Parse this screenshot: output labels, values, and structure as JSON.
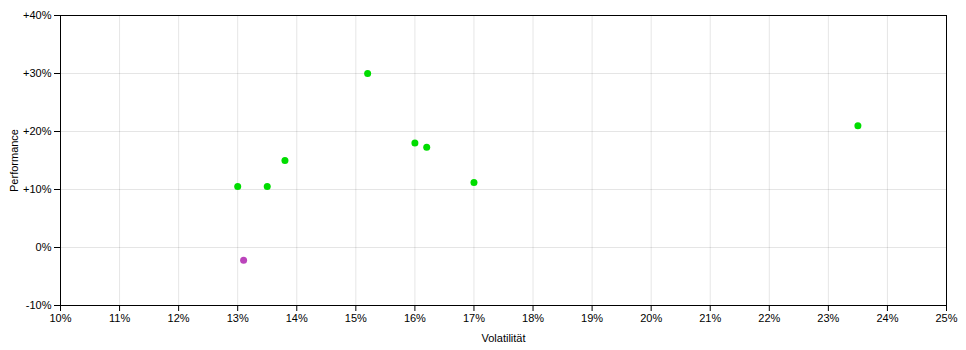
{
  "chart_data": {
    "type": "scatter",
    "xlabel": "Volatilität",
    "ylabel": "Performance",
    "series": [
      {
        "color": "#00dd00",
        "x": [
          0.13,
          0.135,
          0.138,
          0.152,
          0.16,
          0.162,
          0.17,
          0.235
        ],
        "values": [
          0.105,
          0.105,
          0.15,
          0.3,
          0.18,
          0.173,
          0.112,
          0.21
        ]
      },
      {
        "color": "#bb44bb",
        "x": [
          0.131
        ],
        "values": [
          -0.022
        ]
      }
    ],
    "xlim": [
      0.1,
      0.25
    ],
    "ylim": [
      -0.1,
      0.4
    ],
    "xticks": [
      {
        "value": 0.1,
        "label": "10%"
      },
      {
        "value": 0.11,
        "label": "11%"
      },
      {
        "value": 0.12,
        "label": "12%"
      },
      {
        "value": 0.13,
        "label": "13%"
      },
      {
        "value": 0.14,
        "label": "14%"
      },
      {
        "value": 0.15,
        "label": "15%"
      },
      {
        "value": 0.16,
        "label": "16%"
      },
      {
        "value": 0.17,
        "label": "17%"
      },
      {
        "value": 0.18,
        "label": "18%"
      },
      {
        "value": 0.19,
        "label": "19%"
      },
      {
        "value": 0.2,
        "label": "20%"
      },
      {
        "value": 0.21,
        "label": "21%"
      },
      {
        "value": 0.22,
        "label": "22%"
      },
      {
        "value": 0.23,
        "label": "23%"
      },
      {
        "value": 0.24,
        "label": "24%"
      },
      {
        "value": 0.25,
        "label": "25%"
      }
    ],
    "yticks": [
      {
        "value": -0.1,
        "label": "-10%"
      },
      {
        "value": 0.0,
        "label": "0%"
      },
      {
        "value": 0.1,
        "label": "+10%"
      },
      {
        "value": 0.2,
        "label": "+20%"
      },
      {
        "value": 0.3,
        "label": "+30%"
      },
      {
        "value": 0.4,
        "label": "+40%"
      }
    ],
    "grid": true
  }
}
